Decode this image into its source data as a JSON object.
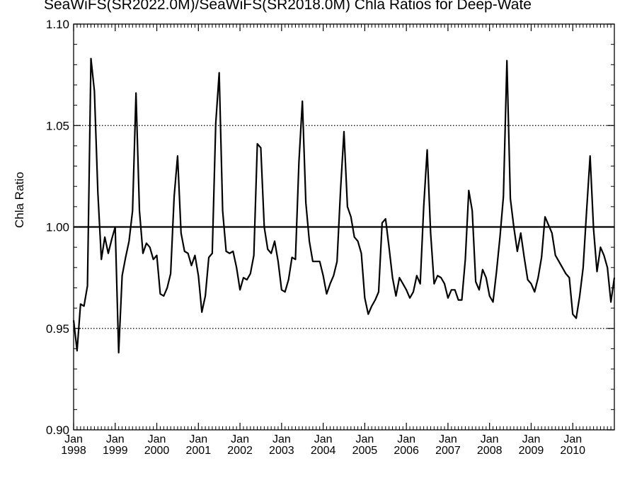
{
  "chart_data": {
    "type": "line",
    "title": "SeaWiFS(SR2022.0M)/SeaWiFS(SR2018.0M)  Chla Ratios for Deep-Wate",
    "ylabel": "Chla Ratio",
    "xlabel": "",
    "ylim": [
      0.9,
      1.1
    ],
    "xlim": [
      1998.0,
      2011.0
    ],
    "y_ticks": [
      "0.90",
      "0.95",
      "1.00",
      "1.05",
      "1.10"
    ],
    "x_ticks": [
      {
        "month": "Jan",
        "year": "1998"
      },
      {
        "month": "Jan",
        "year": "1999"
      },
      {
        "month": "Jan",
        "year": "2000"
      },
      {
        "month": "Jan",
        "year": "2001"
      },
      {
        "month": "Jan",
        "year": "2002"
      },
      {
        "month": "Jan",
        "year": "2003"
      },
      {
        "month": "Jan",
        "year": "2004"
      },
      {
        "month": "Jan",
        "year": "2005"
      },
      {
        "month": "Jan",
        "year": "2006"
      },
      {
        "month": "Jan",
        "year": "2007"
      },
      {
        "month": "Jan",
        "year": "2008"
      },
      {
        "month": "Jan",
        "year": "2009"
      },
      {
        "month": "Jan",
        "year": "2010"
      }
    ],
    "reference_lines": [
      {
        "y": 1.0,
        "style": "solid"
      },
      {
        "y": 0.95,
        "style": "dotted"
      },
      {
        "y": 1.05,
        "style": "dotted"
      }
    ],
    "grid": false,
    "series": [
      {
        "x": [
          1998.0,
          1998.083,
          1998.167,
          1998.25,
          1998.333,
          1998.417,
          1998.5,
          1998.583,
          1998.667,
          1998.75,
          1998.833,
          1998.917,
          1999.0,
          1999.083,
          1999.167,
          1999.25,
          1999.333,
          1999.417,
          1999.5,
          1999.583,
          1999.667,
          1999.75,
          1999.833,
          1999.917,
          2000.0,
          2000.083,
          2000.167,
          2000.25,
          2000.333,
          2000.417,
          2000.5,
          2000.583,
          2000.667,
          2000.75,
          2000.833,
          2000.917,
          2001.0,
          2001.083,
          2001.167,
          2001.25,
          2001.333,
          2001.417,
          2001.5,
          2001.583,
          2001.667,
          2001.75,
          2001.833,
          2001.917,
          2002.0,
          2002.083,
          2002.167,
          2002.25,
          2002.333,
          2002.417,
          2002.5,
          2002.583,
          2002.667,
          2002.75,
          2002.833,
          2002.917,
          2003.0,
          2003.083,
          2003.167,
          2003.25,
          2003.333,
          2003.417,
          2003.5,
          2003.583,
          2003.667,
          2003.75,
          2003.833,
          2003.917,
          2004.0,
          2004.083,
          2004.167,
          2004.25,
          2004.333,
          2004.417,
          2004.5,
          2004.583,
          2004.667,
          2004.75,
          2004.833,
          2004.917,
          2005.0,
          2005.083,
          2005.167,
          2005.25,
          2005.333,
          2005.417,
          2005.5,
          2005.583,
          2005.667,
          2005.75,
          2005.833,
          2005.917,
          2006.0,
          2006.083,
          2006.167,
          2006.25,
          2006.333,
          2006.417,
          2006.5,
          2006.583,
          2006.667,
          2006.75,
          2006.833,
          2006.917,
          2007.0,
          2007.083,
          2007.167,
          2007.25,
          2007.333,
          2007.417,
          2007.5,
          2007.583,
          2007.667,
          2007.75,
          2007.833,
          2007.917,
          2008.0,
          2008.083,
          2008.167,
          2008.25,
          2008.333,
          2008.417,
          2008.5,
          2008.583,
          2008.667,
          2008.75,
          2008.833,
          2008.917,
          2009.0,
          2009.083,
          2009.167,
          2009.25,
          2009.333,
          2009.417,
          2009.5,
          2009.583,
          2009.667,
          2009.75,
          2009.833,
          2009.917,
          2010.0,
          2010.083,
          2010.167,
          2010.25,
          2010.333,
          2010.417,
          2010.5,
          2010.583,
          2010.667,
          2010.75,
          2010.833,
          2010.917,
          2011.0
        ],
        "y": [
          0.954,
          0.939,
          0.962,
          0.961,
          0.971,
          1.083,
          1.067,
          1.017,
          0.984,
          0.995,
          0.987,
          0.994,
          1.0,
          0.938,
          0.976,
          0.985,
          0.993,
          1.008,
          1.066,
          1.008,
          0.987,
          0.992,
          0.99,
          0.984,
          0.986,
          0.967,
          0.966,
          0.97,
          0.977,
          1.015,
          1.035,
          0.997,
          0.988,
          0.987,
          0.981,
          0.986,
          0.976,
          0.958,
          0.966,
          0.985,
          0.987,
          1.051,
          1.076,
          1.008,
          0.988,
          0.987,
          0.988,
          0.98,
          0.969,
          0.975,
          0.974,
          0.977,
          0.986,
          1.041,
          1.039,
          1.0,
          0.989,
          0.987,
          0.993,
          0.983,
          0.969,
          0.968,
          0.974,
          0.985,
          0.984,
          1.032,
          1.062,
          1.012,
          0.993,
          0.983,
          0.983,
          0.983,
          0.976,
          0.967,
          0.972,
          0.976,
          0.983,
          1.018,
          1.047,
          1.01,
          1.005,
          0.995,
          0.993,
          0.987,
          0.965,
          0.957,
          0.961,
          0.964,
          0.968,
          1.002,
          1.004,
          0.99,
          0.975,
          0.966,
          0.975,
          0.972,
          0.969,
          0.965,
          0.968,
          0.976,
          0.972,
          1.01,
          1.038,
          0.997,
          0.972,
          0.976,
          0.975,
          0.972,
          0.965,
          0.969,
          0.969,
          0.964,
          0.964,
          0.984,
          1.018,
          1.008,
          0.973,
          0.969,
          0.979,
          0.975,
          0.966,
          0.963,
          0.978,
          0.995,
          1.015,
          1.082,
          1.014,
          1.0,
          0.988,
          0.997,
          0.985,
          0.974,
          0.972,
          0.968,
          0.975,
          0.985,
          1.005,
          1.001,
          0.997,
          0.986,
          0.983,
          0.98,
          0.977,
          0.975,
          0.957,
          0.955,
          0.966,
          0.98,
          1.008,
          1.035,
          0.999,
          0.978,
          0.99,
          0.986,
          0.98,
          0.963,
          0.975
        ]
      }
    ]
  }
}
